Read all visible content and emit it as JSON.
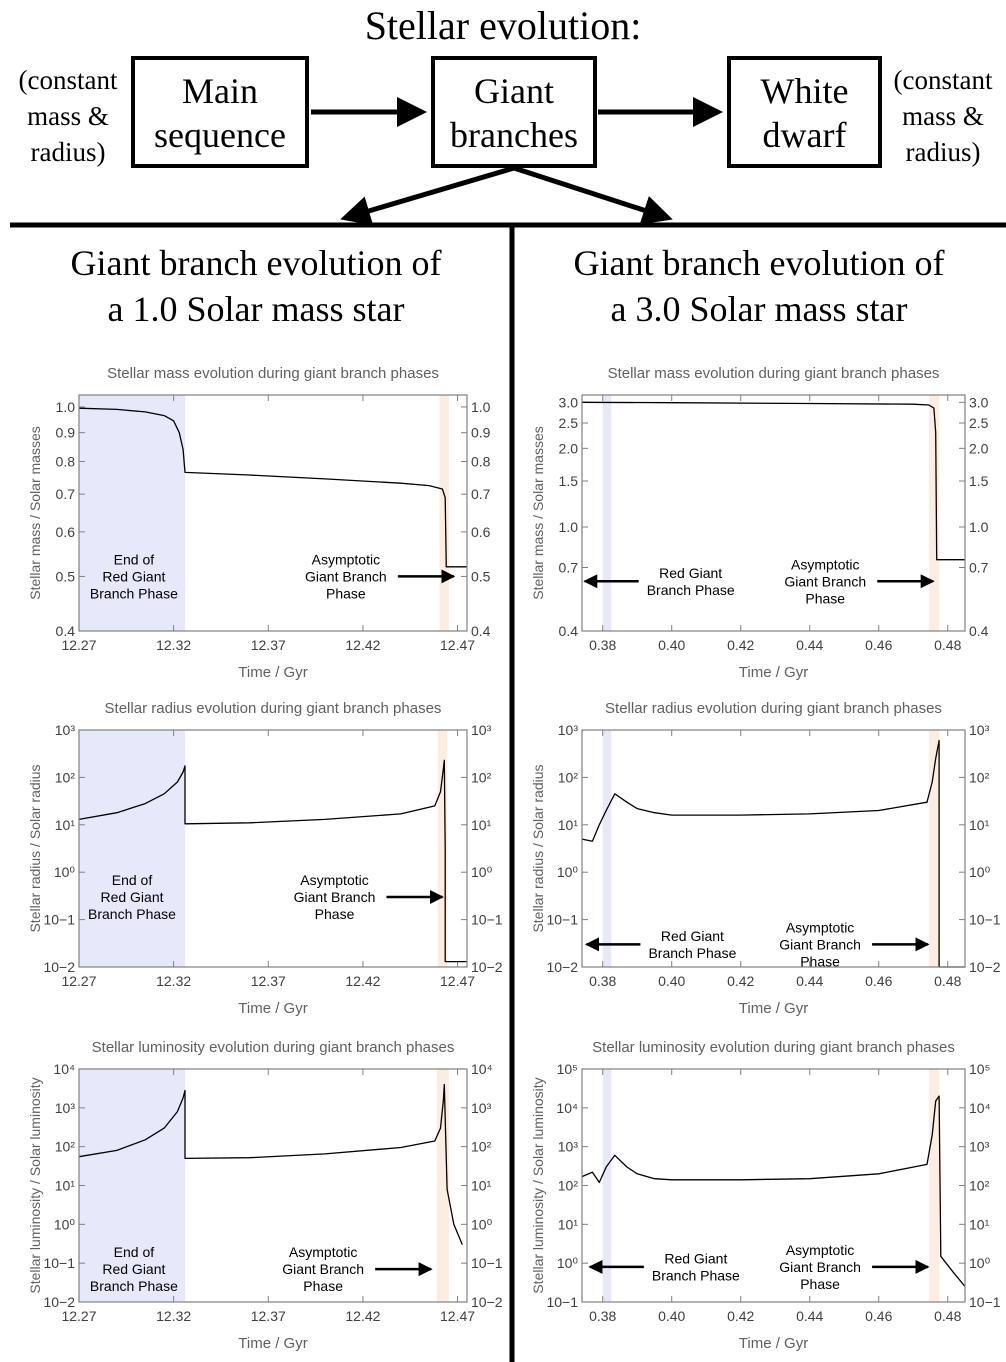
{
  "header": {
    "title": "Stellar evolution:",
    "boxes": [
      {
        "line1": "Main",
        "line2": "sequence"
      },
      {
        "line1": "Giant",
        "line2": "branches"
      },
      {
        "line1": "White",
        "line2": "dwarf"
      }
    ],
    "left_note": [
      "(constant",
      "mass &",
      "radius)"
    ],
    "right_note": [
      "(constant",
      "mass &",
      "radius)"
    ]
  },
  "panels": [
    {
      "title_line1": "Giant branch evolution of",
      "title_line2": "a 1.0 Solar mass star"
    },
    {
      "title_line1": "Giant branch evolution of",
      "title_line2": "a 3.0 Solar mass star"
    }
  ],
  "colors": {
    "rgb_band": "#e8e8fb",
    "agb_band": "#fbeee0",
    "axis": "#808080",
    "line": "#000000"
  },
  "chart_data": [
    {
      "type": "line",
      "title": "Stellar mass evolution during giant branch phases",
      "xlabel": "Time / Gyr",
      "ylabel": "Stellar mass / Solar masses",
      "yscale": "log",
      "xlim": [
        12.27,
        12.475
      ],
      "ylim": [
        0.4,
        1.05
      ],
      "xticks": [
        12.27,
        12.32,
        12.37,
        12.42,
        12.47
      ],
      "xtick_labels": [
        "12.27",
        "12.32",
        "12.37",
        "12.42",
        "12.47"
      ],
      "yticks": [
        0.4,
        0.5,
        0.6,
        0.7,
        0.8,
        0.9,
        1.0
      ],
      "ytick_labels": [
        "0.4",
        "0.5",
        "0.6",
        "0.7",
        "0.8",
        "0.9",
        "1.0"
      ],
      "bands": [
        {
          "kind": "rgb",
          "x0": 12.27,
          "x1": 12.326
        },
        {
          "kind": "agb",
          "x0": 12.4605,
          "x1": 12.4655
        }
      ],
      "annotations": [
        {
          "lines": [
            "End of",
            "Red Giant",
            "Branch Phase"
          ],
          "x": 12.299,
          "y": 0.5,
          "arrow": "none"
        },
        {
          "lines": [
            "Asymptotic",
            "Giant Branch",
            "Phase"
          ],
          "x": 12.411,
          "y": 0.5,
          "arrow": "right"
        }
      ],
      "series": [
        {
          "x": [
            12.27,
            12.29,
            12.305,
            12.315,
            12.32,
            12.323,
            12.325,
            12.326,
            12.326,
            12.36,
            12.4,
            12.44,
            12.455,
            12.462,
            12.4635,
            12.464,
            12.464,
            12.475
          ],
          "y": [
            0.995,
            0.99,
            0.98,
            0.965,
            0.945,
            0.9,
            0.84,
            0.765,
            0.765,
            0.757,
            0.745,
            0.732,
            0.725,
            0.715,
            0.69,
            0.53,
            0.52,
            0.52
          ]
        }
      ]
    },
    {
      "type": "line",
      "title": "Stellar mass evolution during giant branch phases",
      "xlabel": "Time / Gyr",
      "ylabel": "Stellar mass / Solar masses",
      "yscale": "log",
      "xlim": [
        0.374,
        0.485
      ],
      "ylim": [
        0.4,
        3.2
      ],
      "xticks": [
        0.38,
        0.4,
        0.42,
        0.44,
        0.46,
        0.48
      ],
      "xtick_labels": [
        "0.38",
        "0.40",
        "0.42",
        "0.44",
        "0.46",
        "0.48"
      ],
      "yticks": [
        0.4,
        0.7,
        1.0,
        1.5,
        2.0,
        2.5,
        3.0
      ],
      "ytick_labels": [
        "0.4",
        "0.7",
        "1.0",
        "1.5",
        "2.0",
        "2.5",
        "3.0"
      ],
      "bands": [
        {
          "kind": "rgb",
          "x0": 0.38,
          "x1": 0.3825
        },
        {
          "kind": "agb",
          "x0": 0.4745,
          "x1": 0.4775
        }
      ],
      "annotations": [
        {
          "lines": [
            "Red Giant",
            "Branch Phase"
          ],
          "x": 0.4055,
          "y": 0.62,
          "arrow": "left"
        },
        {
          "lines": [
            "Asymptotic",
            "Giant Branch",
            "Phase"
          ],
          "x": 0.4445,
          "y": 0.62,
          "arrow": "right"
        }
      ],
      "series": [
        {
          "x": [
            0.374,
            0.4,
            0.44,
            0.47,
            0.4745,
            0.476,
            0.4765,
            0.4768,
            0.4768,
            0.485
          ],
          "y": [
            3.0,
            2.99,
            2.97,
            2.95,
            2.93,
            2.85,
            2.3,
            0.75,
            0.75,
            0.75
          ]
        }
      ]
    },
    {
      "type": "line",
      "title": "Stellar radius evolution during giant branch phases",
      "xlabel": "Time / Gyr",
      "ylabel": "Stellar radius / Solar radius",
      "yscale": "log",
      "xlim": [
        12.27,
        12.475
      ],
      "ylim": [
        0.01,
        1000
      ],
      "xticks": [
        12.27,
        12.32,
        12.37,
        12.42,
        12.47
      ],
      "xtick_labels": [
        "12.27",
        "12.32",
        "12.37",
        "12.42",
        "12.47"
      ],
      "yticks": [
        0.01,
        0.1,
        1,
        10,
        100,
        1000
      ],
      "ytick_labels": [
        "10−2",
        "10−1",
        "10⁰",
        "10¹",
        "10²",
        "10³"
      ],
      "bands": [
        {
          "kind": "rgb",
          "x0": 12.27,
          "x1": 12.326
        },
        {
          "kind": "agb",
          "x0": 12.4595,
          "x1": 12.4645
        }
      ],
      "annotations": [
        {
          "lines": [
            "End of",
            "Red Giant",
            "Branch Phase"
          ],
          "x": 12.298,
          "y": 0.3,
          "arrow": "none"
        },
        {
          "lines": [
            "Asymptotic",
            "Giant Branch",
            "Phase"
          ],
          "x": 12.405,
          "y": 0.3,
          "arrow": "right"
        }
      ],
      "series": [
        {
          "x": [
            12.27,
            12.29,
            12.305,
            12.315,
            12.322,
            12.325,
            12.326,
            12.326,
            12.36,
            12.4,
            12.44,
            12.458,
            12.461,
            12.4625,
            12.463,
            12.4635,
            12.4635,
            12.475
          ],
          "y": [
            13,
            18,
            28,
            45,
            80,
            130,
            175,
            10.5,
            11,
            13,
            17,
            25,
            50,
            150,
            230,
            3,
            0.013,
            0.013
          ]
        }
      ]
    },
    {
      "type": "line",
      "title": "Stellar radius evolution during giant branch phases",
      "xlabel": "Time / Gyr",
      "ylabel": "Stellar radius / Solar radius",
      "yscale": "log",
      "xlim": [
        0.374,
        0.485
      ],
      "ylim": [
        0.01,
        1000
      ],
      "xticks": [
        0.38,
        0.4,
        0.42,
        0.44,
        0.46,
        0.48
      ],
      "xtick_labels": [
        "0.38",
        "0.40",
        "0.42",
        "0.44",
        "0.46",
        "0.48"
      ],
      "yticks": [
        0.01,
        0.1,
        1,
        10,
        100,
        1000
      ],
      "ytick_labels": [
        "10−2",
        "10−1",
        "10⁰",
        "10¹",
        "10²",
        "10³"
      ],
      "bands": [
        {
          "kind": "rgb",
          "x0": 0.38,
          "x1": 0.3825
        },
        {
          "kind": "agb",
          "x0": 0.4745,
          "x1": 0.4775
        }
      ],
      "annotations": [
        {
          "lines": [
            "Red Giant",
            "Branch Phase"
          ],
          "x": 0.406,
          "y": 0.03,
          "arrow": "left"
        },
        {
          "lines": [
            "Asymptotic",
            "Giant Branch",
            "Phase"
          ],
          "x": 0.443,
          "y": 0.03,
          "arrow": "right"
        }
      ],
      "series": [
        {
          "x": [
            0.374,
            0.377,
            0.379,
            0.381,
            0.3835,
            0.387,
            0.39,
            0.395,
            0.4,
            0.42,
            0.44,
            0.46,
            0.474,
            0.4755,
            0.4765,
            0.4775,
            0.4775,
            0.485
          ],
          "y": [
            5,
            4.5,
            10,
            20,
            45,
            30,
            22,
            18,
            16,
            16,
            17,
            20,
            30,
            80,
            250,
            600,
            0.01,
            0.01
          ]
        }
      ]
    },
    {
      "type": "line",
      "title": "Stellar luminosity evolution during giant branch phases",
      "xlabel": "Time / Gyr",
      "ylabel": "Stellar luminosity / Solar luminosity",
      "yscale": "log",
      "xlim": [
        12.27,
        12.475
      ],
      "ylim": [
        0.01,
        10000
      ],
      "xticks": [
        12.27,
        12.32,
        12.37,
        12.42,
        12.47
      ],
      "xtick_labels": [
        "12.27",
        "12.32",
        "12.37",
        "12.42",
        "12.47"
      ],
      "yticks": [
        0.01,
        0.1,
        1,
        10,
        100,
        1000,
        10000
      ],
      "ytick_labels": [
        "10−2",
        "10−1",
        "10⁰",
        "10¹",
        "10²",
        "10³",
        "10⁴"
      ],
      "bands": [
        {
          "kind": "rgb",
          "x0": 12.27,
          "x1": 12.326
        },
        {
          "kind": "agb",
          "x0": 12.459,
          "x1": 12.4655
        }
      ],
      "annotations": [
        {
          "lines": [
            "End of",
            "Red Giant",
            "Branch Phase"
          ],
          "x": 12.299,
          "y": 0.07,
          "arrow": "none"
        },
        {
          "lines": [
            "Asymptotic",
            "Giant Branch",
            "Phase"
          ],
          "x": 12.399,
          "y": 0.07,
          "arrow": "right"
        }
      ],
      "series": [
        {
          "x": [
            12.27,
            12.29,
            12.305,
            12.315,
            12.322,
            12.325,
            12.326,
            12.326,
            12.36,
            12.4,
            12.44,
            12.458,
            12.461,
            12.4625,
            12.463,
            12.4645,
            12.468,
            12.4725
          ],
          "y": [
            55,
            80,
            150,
            300,
            800,
            1800,
            2800,
            50,
            52,
            65,
            95,
            140,
            300,
            1500,
            4000,
            8,
            1,
            0.3
          ]
        }
      ]
    },
    {
      "type": "line",
      "title": "Stellar luminosity evolution during giant branch phases",
      "xlabel": "Time / Gyr",
      "ylabel": "Stellar luminosity / Solar luminosity",
      "yscale": "log",
      "xlim": [
        0.374,
        0.485
      ],
      "ylim": [
        0.1,
        100000
      ],
      "xticks": [
        0.38,
        0.4,
        0.42,
        0.44,
        0.46,
        0.48
      ],
      "xtick_labels": [
        "0.38",
        "0.40",
        "0.42",
        "0.44",
        "0.46",
        "0.48"
      ],
      "yticks": [
        0.1,
        1,
        10,
        100,
        1000,
        10000,
        100000
      ],
      "ytick_labels": [
        "10−1",
        "10⁰",
        "10¹",
        "10²",
        "10³",
        "10⁴",
        "10⁵"
      ],
      "bands": [
        {
          "kind": "rgb",
          "x0": 0.38,
          "x1": 0.3825
        },
        {
          "kind": "agb",
          "x0": 0.4745,
          "x1": 0.4775
        }
      ],
      "annotations": [
        {
          "lines": [
            "Red Giant",
            "Branch Phase"
          ],
          "x": 0.407,
          "y": 0.8,
          "arrow": "left"
        },
        {
          "lines": [
            "Asymptotic",
            "Giant Branch",
            "Phase"
          ],
          "x": 0.443,
          "y": 0.8,
          "arrow": "right"
        }
      ],
      "series": [
        {
          "x": [
            0.374,
            0.377,
            0.379,
            0.381,
            0.3835,
            0.387,
            0.39,
            0.395,
            0.4,
            0.42,
            0.44,
            0.46,
            0.474,
            0.4755,
            0.4765,
            0.4775,
            0.478,
            0.4815,
            0.485
          ],
          "y": [
            170,
            220,
            120,
            300,
            600,
            300,
            200,
            150,
            140,
            140,
            150,
            200,
            350,
            2000,
            15000,
            20000,
            1.5,
            0.6,
            0.25
          ]
        }
      ]
    }
  ]
}
